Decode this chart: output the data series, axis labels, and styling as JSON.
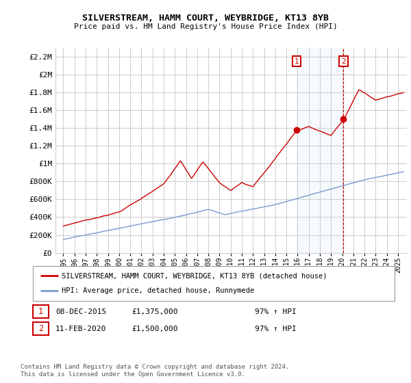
{
  "title": "SILVERSTREAM, HAMM COURT, WEYBRIDGE, KT13 8YB",
  "subtitle": "Price paid vs. HM Land Registry's House Price Index (HPI)",
  "red_label": "SILVERSTREAM, HAMM COURT, WEYBRIDGE, KT13 8YB (detached house)",
  "blue_label": "HPI: Average price, detached house, Runnymede",
  "annotation1_date": "08-DEC-2015",
  "annotation1_price": "£1,375,000",
  "annotation1_hpi": "97% ↑ HPI",
  "annotation1_year": 2015.92,
  "annotation1_value": 1375000,
  "annotation2_date": "11-FEB-2020",
  "annotation2_price": "£1,500,000",
  "annotation2_hpi": "97% ↑ HPI",
  "annotation2_year": 2020.12,
  "annotation2_value": 1500000,
  "ylim": [
    0,
    2300000
  ],
  "yticks": [
    0,
    200000,
    400000,
    600000,
    800000,
    1000000,
    1200000,
    1400000,
    1600000,
    1800000,
    2000000,
    2200000
  ],
  "ytick_labels": [
    "£0",
    "£200K",
    "£400K",
    "£600K",
    "£800K",
    "£1M",
    "£1.2M",
    "£1.4M",
    "£1.6M",
    "£1.8M",
    "£2M",
    "£2.2M"
  ],
  "background_color": "#ffffff",
  "grid_color": "#cccccc",
  "red_color": "#cc0000",
  "blue_color": "#7799cc",
  "shaded_color": "#ddeeff",
  "footer_text": "Contains HM Land Registry data © Crown copyright and database right 2024.\nThis data is licensed under the Open Government Licence v3.0."
}
